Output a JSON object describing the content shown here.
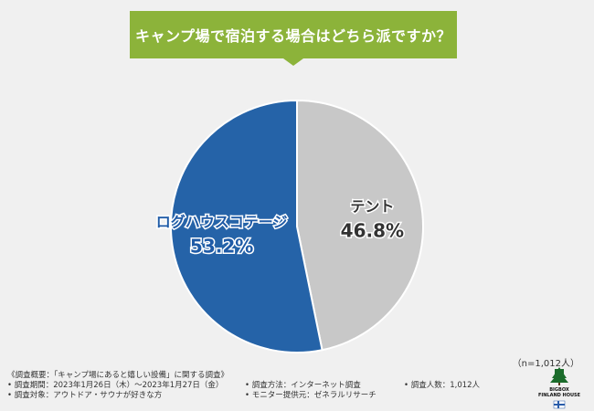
{
  "title": "キャンプ場で宿泊する場合はどちら派ですか？",
  "chart_data": {
    "type": "pie",
    "slices": [
      {
        "label": "テント",
        "value": 46.8,
        "display": "46.8%",
        "color": "#c8c8c8",
        "label_color": "#333333"
      },
      {
        "label": "ログハウスコテージ",
        "value": 53.2,
        "display": "53.2%",
        "color": "#2563a8",
        "label_color": "#1e5aa6"
      }
    ]
  },
  "sample_size": "（n=1,012人）",
  "footer": {
    "survey_overview": "《調査概要：「キャンプ場にあると嬉しい設備」に関する調査》",
    "period": "• 調査期間：2023年1月26日（木）～2023年1月27日（金）",
    "target": "• 調査対象：アウトドア・サウナが好きな方",
    "method": "• 調査方法：インターネット調査",
    "provider": "• モニター提供元：ゼネラルリサーチ",
    "count": "• 調査人数：1,012人"
  },
  "logo": {
    "line1": "BIGBOX",
    "line2": "FINLAND HOUSE"
  },
  "colors": {
    "banner": "#8cb33a",
    "background": "#f0f0f0"
  }
}
